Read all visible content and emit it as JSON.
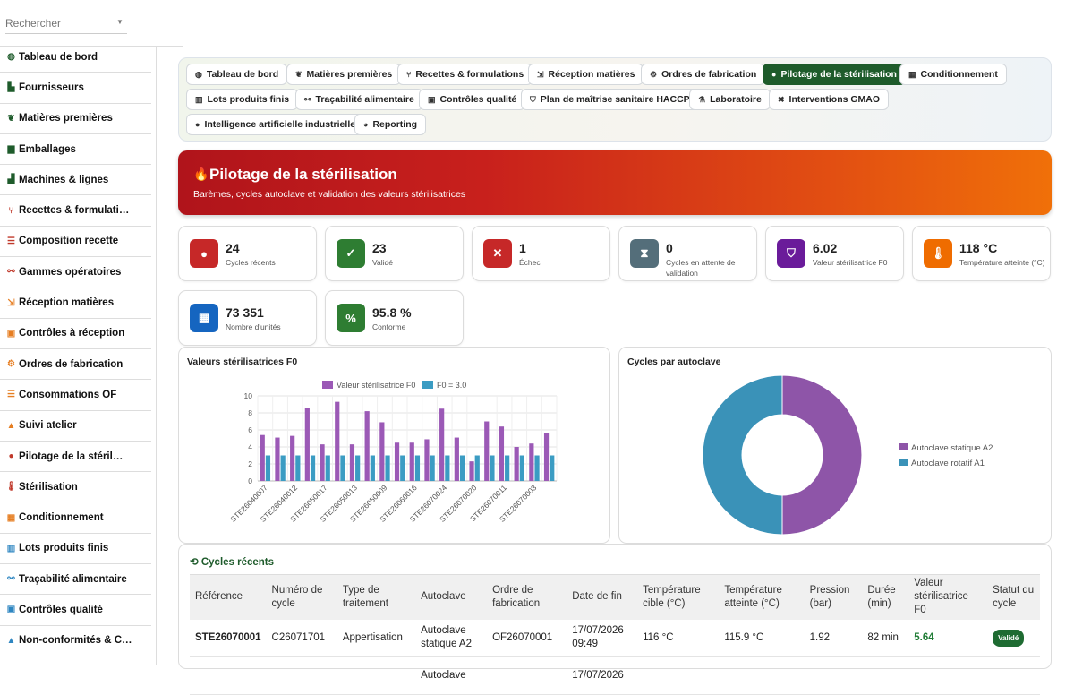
{
  "search": {
    "placeholder": "Rechercher"
  },
  "sidebar": {
    "items": [
      {
        "label": "Tableau de bord",
        "icon": "dashboard-icon",
        "glyph": "◍",
        "color": "#1e5b2b"
      },
      {
        "label": "Fournisseurs",
        "icon": "truck-icon",
        "glyph": "▙",
        "color": "#1e5b2b"
      },
      {
        "label": "Matières premières",
        "icon": "seedling-icon",
        "glyph": "❦",
        "color": "#1e5b2b"
      },
      {
        "label": "Emballages",
        "icon": "box-icon",
        "glyph": "▆",
        "color": "#1e5b2b"
      },
      {
        "label": "Machines & lignes",
        "icon": "industry-icon",
        "glyph": "▟",
        "color": "#1e5b2b"
      },
      {
        "label": "Recettes & formulati…",
        "icon": "utensils-icon",
        "glyph": "⑂",
        "color": "#c0392b"
      },
      {
        "label": "Composition recette",
        "icon": "list-icon",
        "glyph": "☰",
        "color": "#c0392b"
      },
      {
        "label": "Gammes opératoires",
        "icon": "sitemap-icon",
        "glyph": "⚯",
        "color": "#c0392b"
      },
      {
        "label": "Réception matières",
        "icon": "dolly-icon",
        "glyph": "⇲",
        "color": "#e67e22"
      },
      {
        "label": "Contrôles à réception",
        "icon": "clipboard-check-icon",
        "glyph": "▣",
        "color": "#e67e22"
      },
      {
        "label": "Ordres de fabrication",
        "icon": "cogs-icon",
        "glyph": "⚙",
        "color": "#e67e22"
      },
      {
        "label": "Consommations OF",
        "icon": "list-icon",
        "glyph": "☰",
        "color": "#e67e22"
      },
      {
        "label": "Suivi atelier",
        "icon": "hard-hat-icon",
        "glyph": "▲",
        "color": "#e67e22"
      },
      {
        "label": "Pilotage de la stéril…",
        "icon": "fire-icon",
        "glyph": "●",
        "color": "#c0392b"
      },
      {
        "label": "Stérilisation",
        "icon": "thermometer-icon",
        "glyph": "🌡",
        "color": "#c0392b"
      },
      {
        "label": "Conditionnement",
        "icon": "boxes-icon",
        "glyph": "▦",
        "color": "#e67e22"
      },
      {
        "label": "Lots produits finis",
        "icon": "barcode-icon",
        "glyph": "▥",
        "color": "#2e86c1"
      },
      {
        "label": "Traçabilité alimentaire",
        "icon": "sitemap-icon",
        "glyph": "⚯",
        "color": "#2e86c1"
      },
      {
        "label": "Contrôles qualité",
        "icon": "clipboard-check-icon",
        "glyph": "▣",
        "color": "#2e86c1"
      },
      {
        "label": "Non-conformités & C…",
        "icon": "warning-icon",
        "glyph": "▲",
        "color": "#2e86c1"
      }
    ]
  },
  "tabs": [
    {
      "label": "Tableau de bord",
      "icon": "dashboard-icon",
      "glyph": "◍"
    },
    {
      "label": "Matières premières",
      "icon": "seedling-icon",
      "glyph": "❦"
    },
    {
      "label": "Recettes & formulations",
      "icon": "utensils-icon",
      "glyph": "⑂"
    },
    {
      "label": "Réception matières",
      "icon": "dolly-icon",
      "glyph": "⇲"
    },
    {
      "label": "Ordres de fabrication",
      "icon": "cogs-icon",
      "glyph": "⚙"
    },
    {
      "label": "Pilotage de la stérilisation",
      "icon": "fire-icon",
      "glyph": "●",
      "active": true
    },
    {
      "label": "Conditionnement",
      "icon": "boxes-icon",
      "glyph": "▦"
    },
    {
      "label": "Lots produits finis",
      "icon": "barcode-icon",
      "glyph": "▥"
    },
    {
      "label": "Traçabilité alimentaire",
      "icon": "sitemap-icon",
      "glyph": "⚯"
    },
    {
      "label": "Contrôles qualité",
      "icon": "clipboard-check-icon",
      "glyph": "▣"
    },
    {
      "label": "Plan de maîtrise sanitaire HACCP",
      "icon": "shield-icon",
      "glyph": "⛉"
    },
    {
      "label": "Laboratoire",
      "icon": "flask-icon",
      "glyph": "⚗"
    },
    {
      "label": "Interventions GMAO",
      "icon": "tools-icon",
      "glyph": "✖"
    },
    {
      "label": "Intelligence artificielle industrielle",
      "icon": "lightbulb-icon",
      "glyph": "●"
    },
    {
      "label": "Reporting",
      "icon": "pie-chart-icon",
      "glyph": "◕"
    }
  ],
  "hero": {
    "title": "Pilotage de la stérilisation",
    "subtitle": "Barèmes, cycles autoclave et validation des valeurs stérilisatrices",
    "icon": "fire-icon",
    "glyph": "🔥"
  },
  "kpis": [
    {
      "value": "24",
      "label": "Cycles récents",
      "icon": "fire-icon",
      "glyph": "●",
      "color": "#c62828"
    },
    {
      "value": "23",
      "label": "Validé",
      "icon": "check-circle-icon",
      "glyph": "✓",
      "color": "#2e7d32"
    },
    {
      "value": "1",
      "label": "Échec",
      "icon": "x-circle-icon",
      "glyph": "✕",
      "color": "#c62828"
    },
    {
      "value": "0",
      "label": "Cycles en attente de validation",
      "icon": "hourglass-icon",
      "glyph": "⧗",
      "color": "#546e7a"
    },
    {
      "value": "6.02",
      "label": "Valeur stérilisatrice F0",
      "icon": "shield-icon",
      "glyph": "⛉",
      "color": "#6a1b9a"
    },
    {
      "value": "118 °C",
      "label": "Température atteinte (°C)",
      "icon": "thermometer-icon",
      "glyph": "🌡",
      "color": "#ef6c00"
    },
    {
      "value": "73 351",
      "label": "Nombre d'unités",
      "icon": "boxes-icon",
      "glyph": "▦",
      "color": "#1565c0"
    },
    {
      "value": "95.8 %",
      "label": "Conforme",
      "icon": "percent-icon",
      "glyph": "%",
      "color": "#2e7d32"
    }
  ],
  "bar_panel_title": "Valeurs stérilisatrices F0",
  "donut_panel_title": "Cycles par autoclave",
  "chart_data": [
    {
      "type": "bar",
      "title": "",
      "categories": [
        "STE26040007",
        "",
        "STE26040012",
        "",
        "STE26050017",
        "",
        "STE26050013",
        "",
        "STE26050009",
        "",
        "STE26060016",
        "",
        "STE26070024",
        "",
        "STE26070020",
        "",
        "STE26070011",
        "",
        "STE26070003",
        ""
      ],
      "series": [
        {
          "name": "Valeur stérilisatrice F0",
          "color": "#9b59b6",
          "values": [
            5.4,
            5.1,
            5.3,
            8.6,
            4.3,
            9.3,
            4.3,
            8.2,
            6.9,
            4.5,
            4.5,
            4.9,
            8.5,
            5.1,
            2.3,
            7.0,
            6.4,
            4.0,
            4.4,
            5.6
          ]
        },
        {
          "name": "F0 = 3.0",
          "color": "#3b9cc3",
          "values": [
            3,
            3,
            3,
            3,
            3,
            3,
            3,
            3,
            3,
            3,
            3,
            3,
            3,
            3,
            3,
            3,
            3,
            3,
            3,
            3
          ]
        }
      ],
      "ylim": [
        0,
        10
      ],
      "yticks": [
        0,
        2,
        4,
        6,
        8,
        10
      ],
      "legend": "top"
    },
    {
      "type": "pie",
      "title": "",
      "donut": true,
      "labels": [
        "Autoclave statique A2",
        "Autoclave rotatif A1"
      ],
      "values": [
        12,
        12
      ],
      "colors": [
        "#8e55a8",
        "#3a92b8"
      ],
      "legend": "right"
    }
  ],
  "cycles": {
    "title": "Cycles récents",
    "columns": [
      "Référence",
      "Numéro de cycle",
      "Type de traitement",
      "Autoclave",
      "Ordre de fabrication",
      "Date de fin",
      "Température cible (°C)",
      "Température atteinte (°C)",
      "Pression (bar)",
      "Durée (min)",
      "Valeur stérilisatrice F0",
      "Statut du cycle"
    ],
    "rows": [
      [
        "STE26070001",
        "C26071701",
        "Appertisation",
        "Autoclave statique A2",
        "OF26070001",
        "17/07/2026 09:49",
        "116 °C",
        "115.9 °C",
        "1.92",
        "82 min",
        "5.64",
        "Validé"
      ],
      [
        "",
        "",
        "",
        "Autoclave",
        "",
        "17/07/2026",
        "",
        "",
        "",
        "",
        "",
        ""
      ]
    ]
  }
}
